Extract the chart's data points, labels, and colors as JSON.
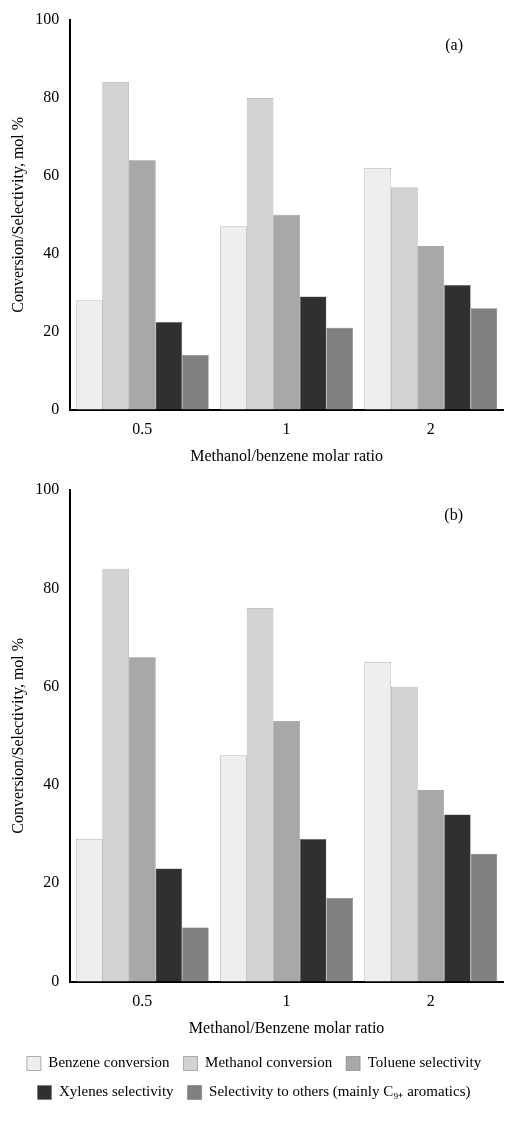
{
  "chart_data": [
    {
      "type": "bar",
      "xlabel": "Methanol/benzene molar ratio",
      "ylabel": "Conversion/Selectivity, mol %",
      "categories": [
        "0.5",
        "1",
        "2"
      ],
      "ylim": [
        0,
        100
      ],
      "yticks": [
        0,
        20,
        40,
        60,
        80,
        100
      ],
      "grid": false,
      "legend": false,
      "annotations": [
        "(a)"
      ],
      "series": [
        {
          "color": "#eeeeee",
          "values": [
            28,
            47,
            62
          ]
        },
        {
          "color": "#d2d2d2",
          "values": [
            84,
            80,
            57
          ]
        },
        {
          "color": "#a8a8a8",
          "values": [
            64,
            50,
            42
          ]
        },
        {
          "color": "#303030",
          "values": [
            22.5,
            29,
            32
          ]
        },
        {
          "color": "#808080",
          "values": [
            14,
            21,
            26
          ]
        }
      ]
    },
    {
      "type": "bar",
      "xlabel": "Methanol/Benzene molar ratio",
      "ylabel": "Conversion/Selectivity, mol %",
      "categories": [
        "0.5",
        "1",
        "2"
      ],
      "ylim": [
        0,
        100
      ],
      "yticks": [
        0,
        20,
        40,
        60,
        80,
        100
      ],
      "grid": false,
      "legend": "bottom",
      "annotations": [
        "(b)"
      ],
      "series": [
        {
          "name": "Benzene conversion",
          "color": "#eeeeee",
          "values": [
            29,
            46,
            65
          ]
        },
        {
          "name": "Methanol conversion",
          "color": "#d2d2d2",
          "values": [
            84,
            76,
            60
          ]
        },
        {
          "name": "Toluene selectivity",
          "color": "#a8a8a8",
          "values": [
            66,
            53,
            39
          ]
        },
        {
          "name": "Xylenes selectivity",
          "color": "#303030",
          "values": [
            23,
            29,
            34
          ]
        },
        {
          "name": "Selectivity to others (mainly C₉₊ aromatics)",
          "color": "#808080",
          "values": [
            11,
            17,
            26
          ]
        }
      ]
    }
  ]
}
